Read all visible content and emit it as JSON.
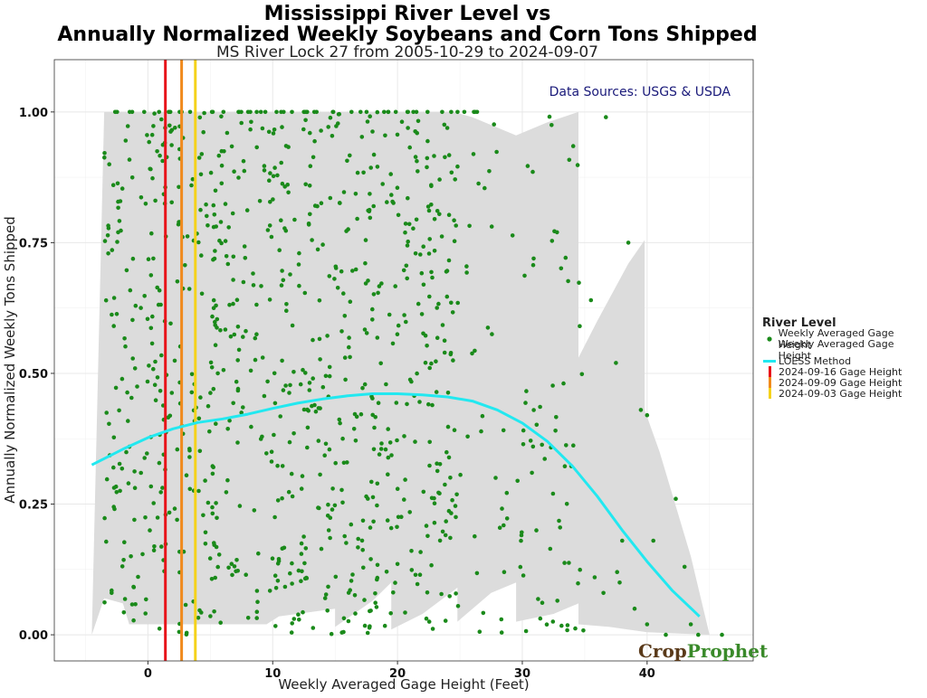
{
  "chart_data": {
    "type": "scatter",
    "title_line1": "Mississippi River Level vs",
    "title_line2": "Annually Normalized Weekly Soybeans and Corn Tons Shipped",
    "subtitle": "MS River Lock 27 from 2005-10-29 to 2024-09-07",
    "xlabel": "Weekly Averaged Gage Height (Feet)",
    "ylabel": "Annually Normalized Weekly Tons Shipped",
    "xlim": [
      -7.5,
      48.5
    ],
    "ylim": [
      -0.05,
      1.1
    ],
    "x_ticks": [
      0,
      10,
      20,
      30,
      40
    ],
    "x_tick_labels": [
      "0",
      "10",
      "20",
      "30",
      "40"
    ],
    "y_ticks": [
      0,
      0.25,
      0.5,
      0.75,
      1.0
    ],
    "y_tick_labels": [
      "0.00",
      "0.25",
      "0.50",
      "0.75",
      "1.00"
    ],
    "grid": true,
    "annotation": "Data Sources: USGS & USDA",
    "point_color": "#1a8a1a",
    "loess_color": "#22e8f0",
    "band_color": "#dcdcdc",
    "scatter_summary": {
      "series": "Weekly Averaged Gage Height",
      "x_range": [
        -4.5,
        45.5
      ],
      "y_range": [
        0,
        1
      ],
      "approx_count": 950
    },
    "loess": {
      "name": "LOESS Method",
      "x": [
        -4.5,
        -2,
        0,
        2,
        4,
        6,
        8,
        10,
        12,
        14,
        16,
        18,
        20,
        22,
        24,
        26,
        28,
        30,
        32,
        34,
        36,
        38,
        40,
        42,
        44.2
      ],
      "y": [
        0.325,
        0.355,
        0.377,
        0.394,
        0.406,
        0.413,
        0.422,
        0.433,
        0.443,
        0.451,
        0.457,
        0.461,
        0.461,
        0.459,
        0.455,
        0.447,
        0.43,
        0.405,
        0.37,
        0.323,
        0.265,
        0.2,
        0.14,
        0.085,
        0.035
      ]
    },
    "confidence_band": {
      "upper": [
        [
          -3.5,
          1.0
        ],
        [
          24.5,
          1.0
        ],
        [
          26,
          0.99
        ],
        [
          29.5,
          0.955
        ],
        [
          32,
          0.98
        ],
        [
          34.5,
          1.0
        ],
        [
          34.5,
          0.53
        ],
        [
          36,
          0.6
        ],
        [
          38.5,
          0.71
        ],
        [
          39.8,
          0.755
        ],
        [
          39.8,
          0.43
        ],
        [
          41,
          0.35
        ],
        [
          43.5,
          0.15
        ],
        [
          45,
          0.0
        ]
      ],
      "lower": [
        [
          -4.5,
          0.0
        ],
        [
          -3.5,
          0.07
        ],
        [
          -2,
          0.06
        ],
        [
          -1.5,
          0.02
        ],
        [
          3,
          0.02
        ],
        [
          7.5,
          0.02
        ],
        [
          9.5,
          0.02
        ],
        [
          10.5,
          0.035
        ],
        [
          15,
          0.05
        ],
        [
          15,
          0.015
        ],
        [
          18,
          0.065
        ],
        [
          19.5,
          0.1
        ],
        [
          19.5,
          0.01
        ],
        [
          22,
          0.04
        ],
        [
          24.8,
          0.09
        ],
        [
          24.8,
          0.025
        ],
        [
          27.5,
          0.08
        ],
        [
          29.5,
          0.1
        ],
        [
          29.5,
          0.025
        ],
        [
          32.5,
          0.04
        ],
        [
          34.5,
          0.06
        ],
        [
          34.5,
          0.02
        ],
        [
          37,
          0.015
        ],
        [
          40,
          0.005
        ],
        [
          45,
          0.0
        ]
      ]
    },
    "vlines": [
      {
        "name": "2024-09-16 Gage Height",
        "x": 1.4,
        "color": "#e8141a"
      },
      {
        "name": "2024-09-09 Gage Height",
        "x": 2.7,
        "color": "#f08a1c"
      },
      {
        "name": "2024-09-03 Gage Height",
        "x": 3.8,
        "color": "#f5d21a"
      }
    ],
    "legend": {
      "title": "River Level",
      "placement": "right",
      "entries": [
        "Weekly Averaged Gage Height",
        "Weekly Averaged Gage Height",
        "LOESS Method",
        "2024-09-16 Gage Height",
        "2024-09-09 Gage Height",
        "2024-09-03 Gage Height"
      ]
    }
  },
  "logo": {
    "crop": "Crop",
    "prophet": "Prophet",
    "crop_color": "#5a3a1a",
    "prophet_color": "#3a8a2a"
  }
}
